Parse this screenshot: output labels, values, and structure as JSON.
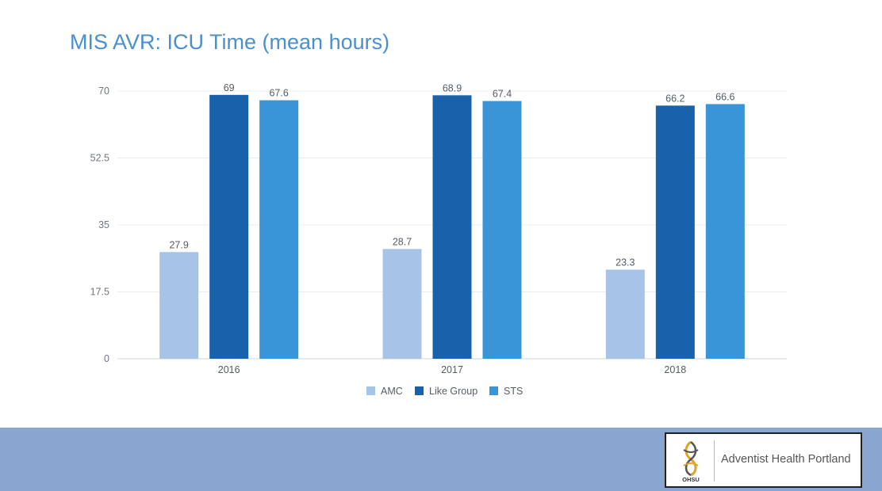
{
  "slide": {
    "title": "MIS AVR: ICU Time (mean hours)"
  },
  "footer": {
    "emblem_text": "OHSU",
    "org_name": "Adventist Health Portland"
  },
  "chart_data": {
    "type": "bar",
    "title": "",
    "xlabel": "",
    "ylabel": "",
    "categories": [
      "2016",
      "2017",
      "2018"
    ],
    "series": [
      {
        "name": "AMC",
        "values": [
          27.9,
          28.7,
          23.3
        ],
        "labels": [
          "27.9",
          "28.7",
          "23.3"
        ],
        "color": "#a7c4e8"
      },
      {
        "name": "Like Group",
        "values": [
          69,
          68.9,
          66.2
        ],
        "labels": [
          "69",
          "68.9",
          "66.2"
        ],
        "color": "#1862ac"
      },
      {
        "name": "STS",
        "values": [
          67.6,
          67.4,
          66.6
        ],
        "labels": [
          "67.6",
          "67.4",
          "66.6"
        ],
        "color": "#3a95d8"
      }
    ],
    "ylim": [
      0,
      70
    ],
    "yticks": [
      0,
      17.5,
      35,
      52.5,
      70
    ],
    "ytick_labels": [
      "0",
      "17.5",
      "35",
      "52.5",
      "70"
    ],
    "grid": true,
    "legend_position": "bottom"
  }
}
